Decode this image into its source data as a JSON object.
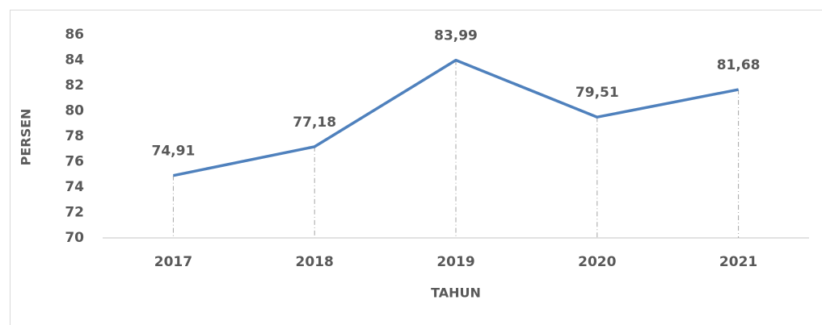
{
  "chart_data": {
    "type": "line",
    "x_label": "TAHUN",
    "y_label": "PERSEN",
    "categories": [
      "2017",
      "2018",
      "2019",
      "2020",
      "2021"
    ],
    "values": [
      74.91,
      77.18,
      83.99,
      79.51,
      81.68
    ],
    "value_labels": [
      "74,91",
      "77,18",
      "83,99",
      "79,51",
      "81,68"
    ],
    "color": "#4f81bd",
    "ylim": [
      70,
      86
    ],
    "yticks": [
      70,
      72,
      74,
      76,
      78,
      80,
      82,
      84,
      86
    ],
    "grid": false,
    "drop_lines": true
  }
}
